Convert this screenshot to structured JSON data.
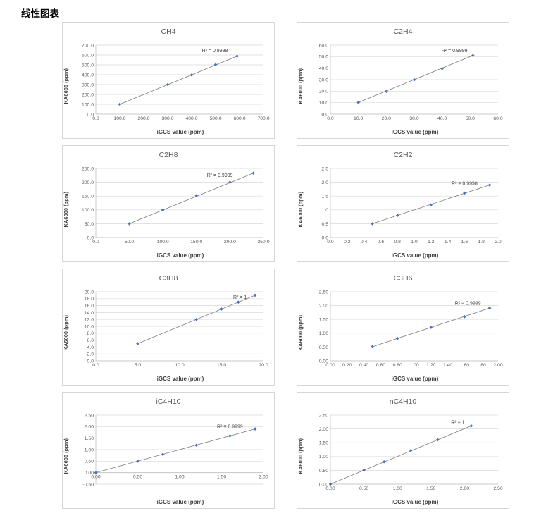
{
  "page_title": "线性图表",
  "colors": {
    "marker": "#4472c4",
    "trendline": "#7a7a7a",
    "gridline": "#d9d9d9",
    "axis": "#bfbfbf",
    "tick_text": "#595959",
    "r2_text": "#404040",
    "chart_border": "#d6d6d6"
  },
  "chart_data": [
    {
      "type": "scatter",
      "title": "CH4",
      "xlabel": "iGCS value (ppm)",
      "ylabel": "KA6000 (ppm)",
      "r2_label": "R² = 0.9998",
      "x": [
        100,
        300,
        400,
        500,
        590
      ],
      "y": [
        100,
        300,
        397,
        502,
        588
      ],
      "xlim": [
        0,
        700
      ],
      "xstep": 100,
      "ylim": [
        0,
        700
      ],
      "ystep": 100,
      "tick_decimals": 1,
      "grid": "horizontal",
      "legend": false,
      "trendline": true,
      "r2_fx": 0.71,
      "r2_fy": 0.1
    },
    {
      "type": "scatter",
      "title": "C2H4",
      "xlabel": "iGCS value (ppm)",
      "ylabel": "KA6000 (ppm)",
      "r2_label": "R² = 0.9999",
      "x": [
        10,
        20,
        30,
        40,
        51
      ],
      "y": [
        10.2,
        19.8,
        29.9,
        39.6,
        51.0
      ],
      "xlim": [
        0,
        60
      ],
      "xstep": 10,
      "ylim": [
        0,
        60
      ],
      "ystep": 10,
      "tick_decimals": 1,
      "grid": "horizontal",
      "legend": false,
      "trendline": true,
      "r2_fx": 0.74,
      "r2_fy": 0.1
    },
    {
      "type": "scatter",
      "title": "C2H8",
      "xlabel": "iGCS value (ppm)",
      "ylabel": "KA6000 (ppm)",
      "r2_label": "R² = 0.9999",
      "x": [
        50,
        100,
        150,
        200,
        235
      ],
      "y": [
        50,
        100,
        151,
        200,
        233
      ],
      "xlim": [
        0,
        250
      ],
      "xstep": 50,
      "ylim": [
        0,
        250
      ],
      "ystep": 50,
      "tick_decimals": 1,
      "grid": "horizontal",
      "legend": false,
      "trendline": true,
      "r2_fx": 0.74,
      "r2_fy": 0.12
    },
    {
      "type": "scatter",
      "title": "C2H2",
      "xlabel": "iGCS value (ppm)",
      "ylabel": "KA6000 (ppm)",
      "r2_label": "R² = 0.9998",
      "x": [
        0.5,
        0.8,
        1.2,
        1.6,
        1.9
      ],
      "y": [
        0.5,
        0.8,
        1.18,
        1.61,
        1.9
      ],
      "xlim": [
        0,
        2.0
      ],
      "xstep": 0.2,
      "ylim": [
        0,
        2.5
      ],
      "ystep": 0.5,
      "tick_decimals": 1,
      "grid": "horizontal",
      "legend": false,
      "trendline": true,
      "r2_fx": 0.8,
      "r2_fy": 0.24
    },
    {
      "type": "scatter",
      "title": "C3H8",
      "xlabel": "iGCS value (ppm)",
      "ylabel": "KA6000 (ppm)",
      "r2_label": "R² = 1",
      "x": [
        5,
        12,
        15,
        17,
        19
      ],
      "y": [
        5,
        12,
        15,
        17,
        19
      ],
      "xlim": [
        0,
        20
      ],
      "xstep": 5,
      "ylim": [
        0,
        20
      ],
      "ystep": 2,
      "tick_decimals": 1,
      "grid": "horizontal",
      "legend": false,
      "trendline": true,
      "r2_fx": 0.86,
      "r2_fy": 0.1
    },
    {
      "type": "scatter",
      "title": "C3H6",
      "xlabel": "iGCS value (ppm)",
      "ylabel": "KA6000 (ppm)",
      "r2_label": "R² = 0.9999",
      "x": [
        0.5,
        0.8,
        1.2,
        1.6,
        1.9
      ],
      "y": [
        0.51,
        0.81,
        1.21,
        1.6,
        1.91
      ],
      "xlim": [
        0,
        2.0
      ],
      "xstep": 0.2,
      "ylim": [
        0,
        2.5
      ],
      "ystep": 0.5,
      "tick_decimals": 2,
      "grid": "horizontal",
      "legend": false,
      "trendline": true,
      "r2_fx": 0.82,
      "r2_fy": 0.19
    },
    {
      "type": "scatter",
      "title": "iC4H10",
      "xlabel": "iGCS value (ppm)",
      "ylabel": "KA6000 (ppm)",
      "r2_label": "R² = 0.9999",
      "x": [
        0,
        0.5,
        0.8,
        1.2,
        1.6,
        1.9
      ],
      "y": [
        0,
        0.5,
        0.79,
        1.19,
        1.6,
        1.9
      ],
      "xlim": [
        0,
        2.0
      ],
      "xstep": 0.5,
      "ylim": [
        -0.5,
        2.5
      ],
      "ystep": 0.5,
      "tick_decimals": 2,
      "grid": "horizontal",
      "legend": false,
      "trendline": true,
      "r2_fx": 0.8,
      "r2_fy": 0.19
    },
    {
      "type": "scatter",
      "title": "nC4H10",
      "xlabel": "iGCS value (ppm)",
      "ylabel": "KA6000 (ppm)",
      "r2_label": "R² = 1",
      "x": [
        0,
        0.5,
        0.8,
        1.2,
        1.6,
        2.1
      ],
      "y": [
        0,
        0.51,
        0.81,
        1.22,
        1.61,
        2.11
      ],
      "xlim": [
        0,
        2.5
      ],
      "xstep": 0.5,
      "ylim": [
        0,
        2.5
      ],
      "ystep": 0.5,
      "tick_decimals": 2,
      "grid": "horizontal",
      "legend": false,
      "trendline": true,
      "r2_fx": 0.76,
      "r2_fy": 0.13
    }
  ]
}
